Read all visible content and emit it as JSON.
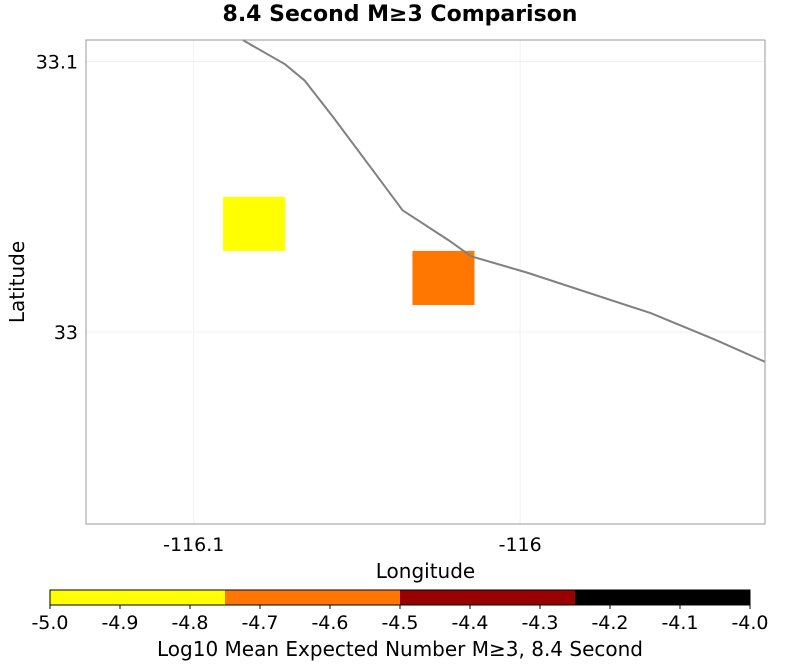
{
  "chart_data": {
    "type": "heatmap",
    "title": "8.4 Second M≥3 Comparison",
    "xlabel": "Longitude",
    "ylabel": "Latitude",
    "xlim": [
      -116.133,
      -115.925
    ],
    "ylim": [
      32.929,
      33.108
    ],
    "x_ticks": [
      {
        "value": -116.1,
        "label": "-116.1"
      },
      {
        "value": -116.0,
        "label": "-116"
      }
    ],
    "y_ticks": [
      {
        "value": 33.1,
        "label": "33.1"
      },
      {
        "value": 33.0,
        "label": "33"
      }
    ],
    "cells": [
      {
        "x0": -116.091,
        "x1": -116.072,
        "y0": 33.03,
        "y1": 33.05,
        "value": -4.9,
        "color": "#ffff00"
      },
      {
        "x0": -116.033,
        "x1": -116.014,
        "y0": 33.01,
        "y1": 33.03,
        "value": -4.6,
        "color": "#ff7700"
      }
    ],
    "fault_trace": [
      [
        -116.085,
        33.108
      ],
      [
        -116.072,
        33.099
      ],
      [
        -116.066,
        33.093
      ],
      [
        -116.057,
        33.079
      ],
      [
        -116.044,
        33.058
      ],
      [
        -116.036,
        33.045
      ],
      [
        -116.022,
        33.034
      ],
      [
        -116.015,
        33.028
      ],
      [
        -115.998,
        33.022
      ],
      [
        -115.96,
        33.007
      ],
      [
        -115.94,
        32.997
      ],
      [
        -115.925,
        32.989
      ]
    ],
    "colorbar": {
      "label": "Log10 Mean Expected Number M≥3, 8.4 Second",
      "range": [
        -5.0,
        -4.0
      ],
      "ticks": [
        "-5.0",
        "-4.9",
        "-4.8",
        "-4.7",
        "-4.6",
        "-4.5",
        "-4.4",
        "-4.3",
        "-4.2",
        "-4.1",
        "-4.0"
      ],
      "segments": [
        {
          "from": -5.0,
          "to": -4.75,
          "color": "#ffff00"
        },
        {
          "from": -4.75,
          "to": -4.5,
          "color": "#ff7700"
        },
        {
          "from": -4.5,
          "to": -4.25,
          "color": "#990000"
        },
        {
          "from": -4.25,
          "to": -4.0,
          "color": "#000000"
        }
      ]
    },
    "colors": {
      "fault_line": "#808080",
      "frame": "#9a9a9a",
      "grid": "#f0f0f0"
    },
    "grid": true
  }
}
